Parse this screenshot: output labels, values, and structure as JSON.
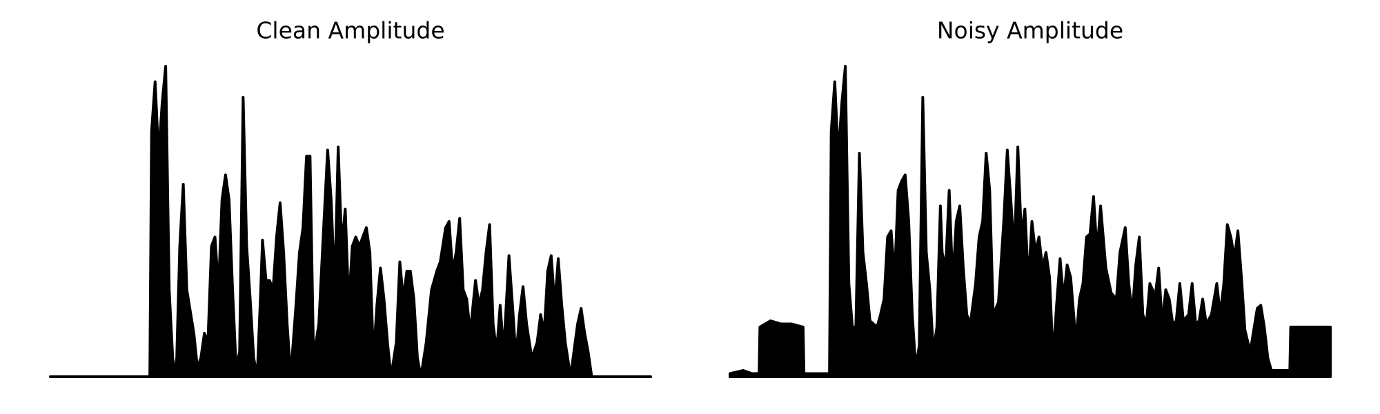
{
  "chart_data": [
    {
      "type": "area",
      "title": "Clean Amplitude",
      "color": "#000000",
      "xlim": [
        0,
        682
      ],
      "ylim": [
        0,
        1
      ],
      "x": [
        0,
        113,
        115,
        119,
        123,
        127,
        131,
        135,
        139,
        143,
        147,
        151,
        155,
        159,
        163,
        167,
        171,
        175,
        179,
        183,
        187,
        191,
        195,
        199,
        203,
        207,
        211,
        215,
        219,
        223,
        227,
        231,
        235,
        239,
        241,
        245,
        249,
        253,
        257,
        261,
        265,
        269,
        273,
        279,
        283,
        287,
        291,
        295,
        299,
        305,
        311,
        315,
        319,
        323,
        327,
        331,
        335,
        339,
        343,
        347,
        351,
        355,
        359,
        363,
        367,
        371,
        375,
        379,
        383,
        387,
        393,
        397,
        401,
        405,
        409,
        413,
        417,
        421,
        427,
        433,
        439,
        443,
        449,
        453,
        457,
        461,
        465,
        469,
        473,
        477,
        483,
        487,
        491,
        495,
        499,
        503,
        507,
        511,
        515,
        521,
        525,
        529,
        533,
        537,
        541,
        547,
        553,
        557,
        561,
        565,
        569,
        573,
        577,
        581,
        585,
        591,
        599,
        603,
        607,
        611,
        615,
        682
      ],
      "values": [
        0,
        0,
        0.79,
        0.95,
        0.71,
        0.88,
        1.0,
        0.28,
        0.06,
        0,
        0.42,
        0.62,
        0.28,
        0.21,
        0.14,
        0.03,
        0.06,
        0.14,
        0.11,
        0.42,
        0.45,
        0.28,
        0.57,
        0.65,
        0.57,
        0.28,
        0.03,
        0.08,
        0.9,
        0.42,
        0.25,
        0.06,
        0,
        0.28,
        0.44,
        0.31,
        0.31,
        0.28,
        0.45,
        0.56,
        0.4,
        0.17,
        0,
        0.23,
        0.4,
        0.48,
        0.71,
        0.71,
        0.06,
        0.17,
        0.51,
        0.73,
        0.57,
        0.28,
        0.74,
        0.42,
        0.54,
        0.23,
        0.42,
        0.45,
        0.42,
        0.45,
        0.48,
        0.4,
        0.06,
        0.23,
        0.35,
        0.25,
        0.11,
        0,
        0.11,
        0.37,
        0.25,
        0.34,
        0.34,
        0.25,
        0.06,
        0,
        0.11,
        0.28,
        0.34,
        0.37,
        0.48,
        0.5,
        0.34,
        0.4,
        0.51,
        0.28,
        0.25,
        0.14,
        0.31,
        0.23,
        0.28,
        0.4,
        0.49,
        0.17,
        0.08,
        0.23,
        0.08,
        0.39,
        0.23,
        0.06,
        0.2,
        0.29,
        0.17,
        0.06,
        0.11,
        0.2,
        0.14,
        0.34,
        0.39,
        0.23,
        0.38,
        0.23,
        0.11,
        0,
        0.17,
        0.22,
        0.14,
        0.08,
        0,
        0
      ]
    },
    {
      "type": "area",
      "title": "Noisy Amplitude",
      "color": "#000000",
      "xlim": [
        0,
        682
      ],
      "ylim": [
        0,
        1
      ],
      "x": [
        0,
        15,
        25,
        33,
        34,
        46,
        58,
        70,
        83,
        84,
        113,
        115,
        119,
        123,
        127,
        131,
        135,
        139,
        143,
        147,
        151,
        155,
        159,
        163,
        167,
        171,
        175,
        179,
        183,
        187,
        191,
        195,
        199,
        203,
        207,
        211,
        215,
        219,
        223,
        227,
        231,
        235,
        239,
        241,
        245,
        249,
        253,
        257,
        261,
        265,
        269,
        273,
        279,
        283,
        287,
        291,
        295,
        299,
        305,
        311,
        315,
        319,
        323,
        327,
        331,
        335,
        339,
        343,
        347,
        351,
        355,
        359,
        363,
        367,
        371,
        375,
        379,
        383,
        387,
        393,
        397,
        401,
        405,
        409,
        413,
        417,
        421,
        427,
        433,
        439,
        443,
        449,
        453,
        457,
        461,
        465,
        469,
        473,
        477,
        483,
        487,
        491,
        495,
        499,
        503,
        507,
        511,
        515,
        521,
        525,
        529,
        533,
        537,
        541,
        547,
        553,
        557,
        561,
        565,
        569,
        573,
        577,
        581,
        585,
        591,
        599,
        603,
        607,
        611,
        615,
        636,
        637,
        660,
        682
      ],
      "values": [
        0.01,
        0.02,
        0.01,
        0.01,
        0.16,
        0.18,
        0.17,
        0.17,
        0.16,
        0.01,
        0.01,
        0.79,
        0.95,
        0.71,
        0.88,
        1.0,
        0.3,
        0.16,
        0.16,
        0.72,
        0.4,
        0.3,
        0.18,
        0.17,
        0.16,
        0.2,
        0.25,
        0.45,
        0.47,
        0.32,
        0.6,
        0.63,
        0.65,
        0.5,
        0.2,
        0.03,
        0.1,
        0.9,
        0.4,
        0.28,
        0.08,
        0.16,
        0.55,
        0.4,
        0.35,
        0.6,
        0.3,
        0.5,
        0.55,
        0.35,
        0.2,
        0.17,
        0.3,
        0.45,
        0.5,
        0.72,
        0.6,
        0.2,
        0.24,
        0.5,
        0.73,
        0.57,
        0.4,
        0.74,
        0.45,
        0.54,
        0.3,
        0.5,
        0.4,
        0.45,
        0.35,
        0.4,
        0.32,
        0.06,
        0.23,
        0.38,
        0.25,
        0.36,
        0.32,
        0.11,
        0.25,
        0.3,
        0.45,
        0.46,
        0.58,
        0.4,
        0.55,
        0.35,
        0.27,
        0.25,
        0.4,
        0.48,
        0.3,
        0.2,
        0.36,
        0.45,
        0.2,
        0.17,
        0.3,
        0.26,
        0.35,
        0.17,
        0.28,
        0.25,
        0.17,
        0.18,
        0.3,
        0.18,
        0.2,
        0.3,
        0.17,
        0.18,
        0.25,
        0.17,
        0.2,
        0.3,
        0.2,
        0.3,
        0.49,
        0.45,
        0.38,
        0.47,
        0.32,
        0.15,
        0.08,
        0.22,
        0.23,
        0.16,
        0.06,
        0.02,
        0.02,
        0.16,
        0.16,
        0.16
      ]
    }
  ]
}
